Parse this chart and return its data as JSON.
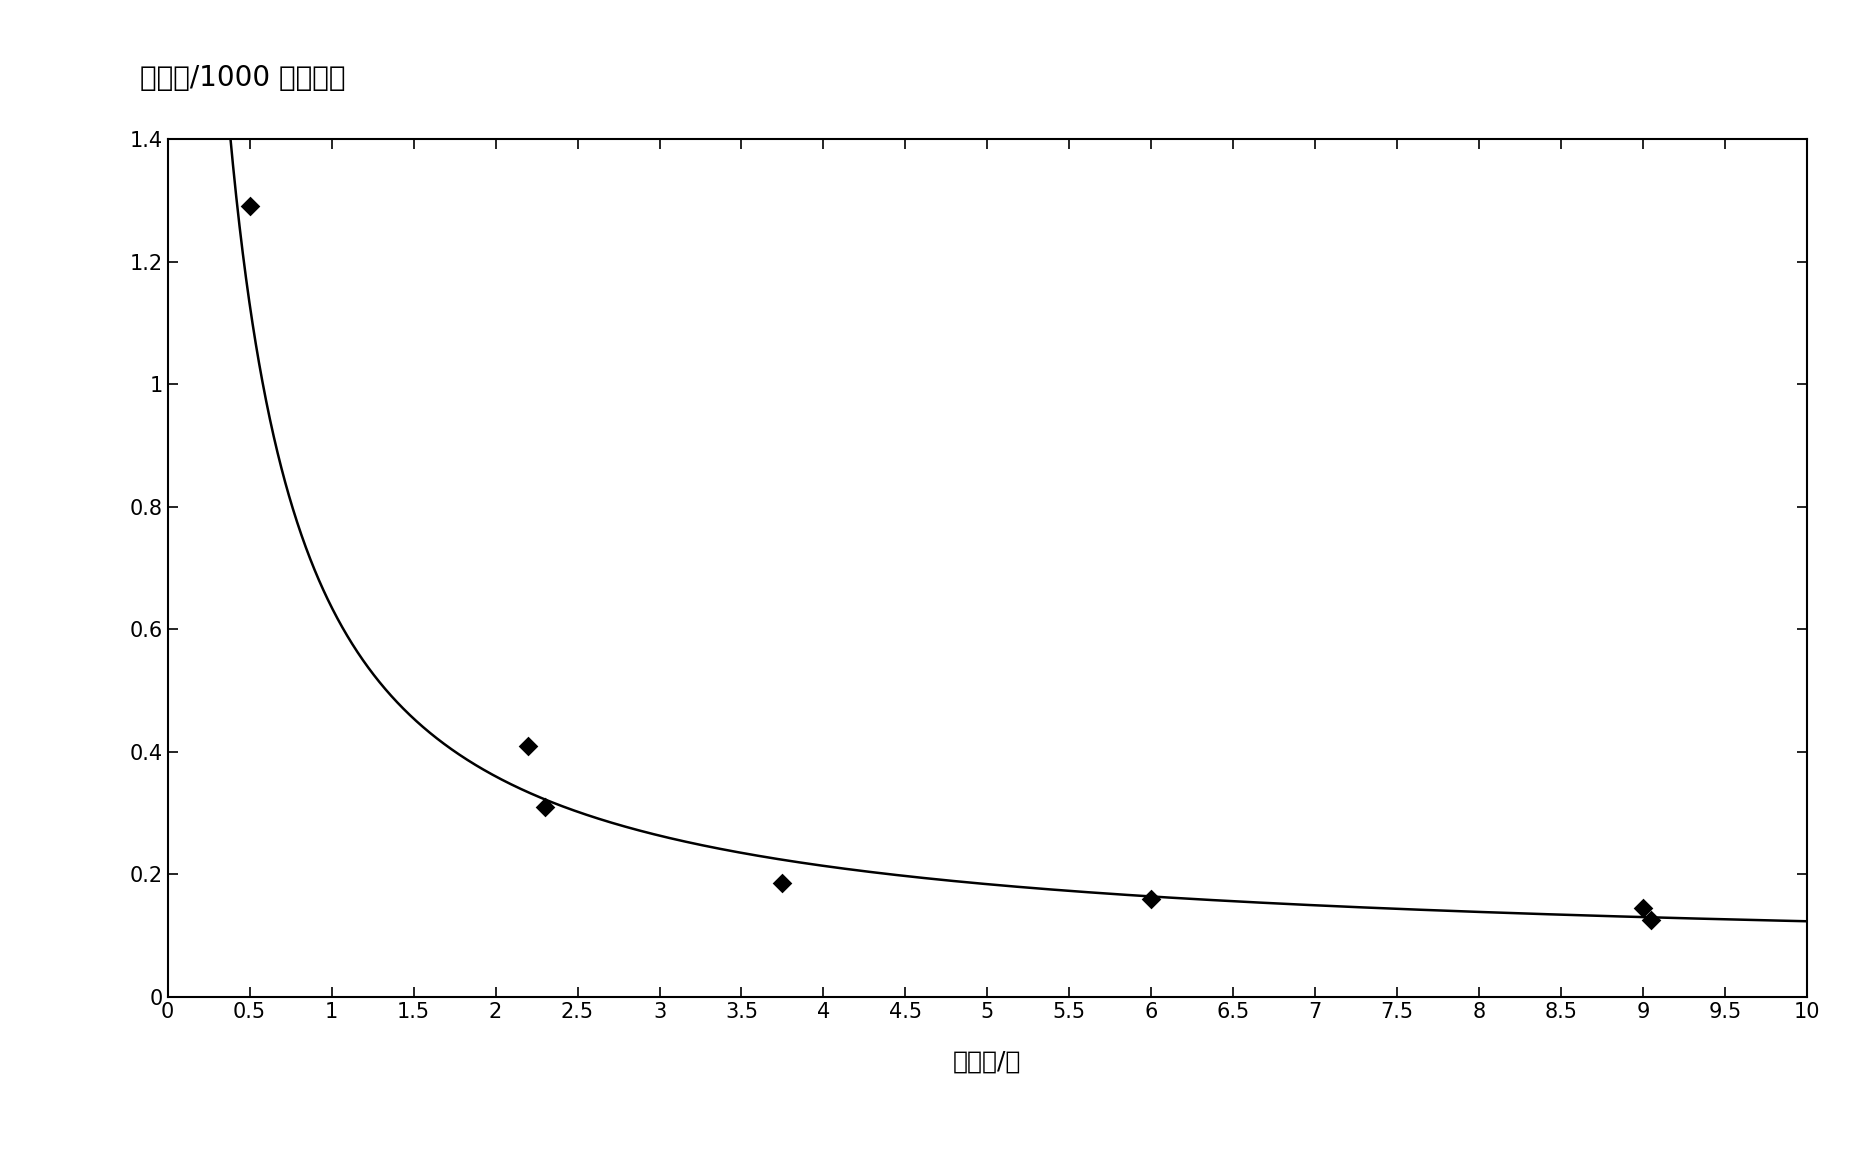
{
  "title": "命中数/1000 个转化子",
  "xlabel": "转化子/孔",
  "xlim": [
    0,
    10
  ],
  "ylim": [
    0,
    1.4
  ],
  "yticks": [
    0,
    0.2,
    0.4,
    0.6,
    0.8,
    1.0,
    1.2,
    1.4
  ],
  "xtick_positions": [
    0,
    0.5,
    1,
    1.5,
    2,
    2.5,
    3,
    3.5,
    4,
    4.5,
    5,
    5.5,
    6,
    6.5,
    7,
    7.5,
    8,
    8.5,
    9,
    9.5,
    10
  ],
  "xtick_labels": [
    "0",
    "0.5",
    "1",
    "1.5",
    "2",
    "2.5",
    "3",
    "3.5",
    "4",
    "4.5",
    "5",
    "5.5",
    "6",
    "6.5",
    "7",
    "7.5",
    "8",
    "8.5",
    "9",
    "9.5",
    "10"
  ],
  "scatter_x": [
    0.5,
    2.2,
    2.3,
    3.75,
    6.0,
    9.0,
    9.05
  ],
  "scatter_y": [
    1.29,
    0.41,
    0.31,
    0.185,
    0.16,
    0.145,
    0.125
  ],
  "curve_A": 0.62,
  "curve_k": 1.15,
  "curve_c": 0.105,
  "background_color": "#ffffff",
  "line_color": "#000000",
  "marker_color": "#000000",
  "title_fontsize": 20,
  "label_fontsize": 18,
  "tick_fontsize": 15
}
